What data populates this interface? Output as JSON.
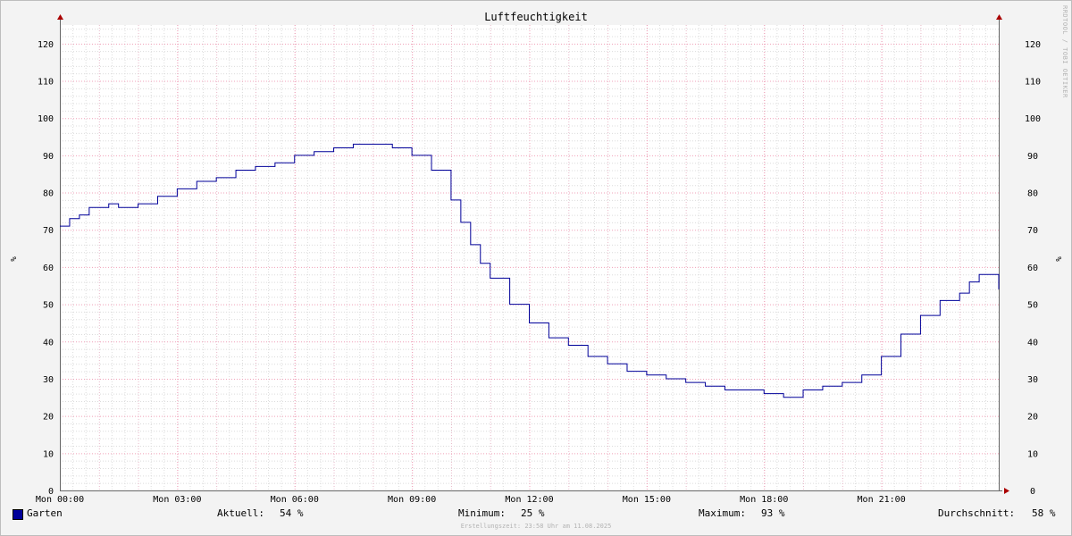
{
  "chart_data": {
    "type": "line",
    "title": "Luftfeuchtigkeit",
    "ylabel": "%",
    "ylim": [
      0,
      125
    ],
    "yticks": [
      0,
      10,
      20,
      30,
      40,
      50,
      60,
      70,
      80,
      90,
      100,
      110,
      120
    ],
    "xlim": [
      0,
      24
    ],
    "xticks": [
      0,
      3,
      6,
      9,
      12,
      15,
      18,
      21
    ],
    "xtick_labels": [
      "Mon 00:00",
      "Mon 03:00",
      "Mon 06:00",
      "Mon 09:00",
      "Mon 12:00",
      "Mon 15:00",
      "Mon 18:00",
      "Mon 21:00"
    ],
    "x_unit": "hour of day",
    "grid": true,
    "series": [
      {
        "name": "Garten",
        "color": "#000099",
        "x": [
          0,
          0.25,
          0.5,
          0.75,
          1.0,
          1.25,
          1.5,
          2.0,
          2.5,
          3.0,
          3.5,
          4.0,
          4.5,
          5.0,
          5.5,
          6.0,
          6.5,
          7.0,
          7.5,
          8.0,
          8.5,
          9.0,
          9.5,
          10.0,
          10.25,
          10.5,
          10.75,
          11.0,
          11.5,
          12.0,
          12.5,
          13.0,
          13.5,
          14.0,
          14.5,
          15.0,
          15.5,
          16.0,
          16.5,
          17.0,
          17.5,
          18.0,
          18.5,
          19.0,
          19.5,
          20.0,
          20.5,
          21.0,
          21.5,
          22.0,
          22.5,
          23.0,
          23.25,
          23.5,
          24.0
        ],
        "values": [
          71,
          73,
          74,
          76,
          76,
          77,
          76,
          77,
          79,
          81,
          83,
          84,
          86,
          87,
          88,
          90,
          91,
          92,
          93,
          93,
          92,
          90,
          86,
          78,
          72,
          66,
          61,
          57,
          50,
          45,
          41,
          39,
          36,
          34,
          32,
          31,
          30,
          29,
          28,
          27,
          27,
          26,
          25,
          27,
          28,
          29,
          31,
          36,
          42,
          47,
          51,
          53,
          56,
          58,
          54
        ]
      }
    ],
    "legend": {
      "name": "Garten",
      "current_label": "Aktuell:",
      "current": "54 %",
      "min_label": "Minimum:",
      "min": "25 %",
      "max_label": "Maximum:",
      "max": "93 %",
      "avg_label": "Durchschnitt:",
      "avg": "58 %"
    }
  },
  "footer": "Erstellungszeit: 23:58 Uhr am 11.08.2025",
  "watermark": "RRDTOOL / TOBI OETIKER"
}
